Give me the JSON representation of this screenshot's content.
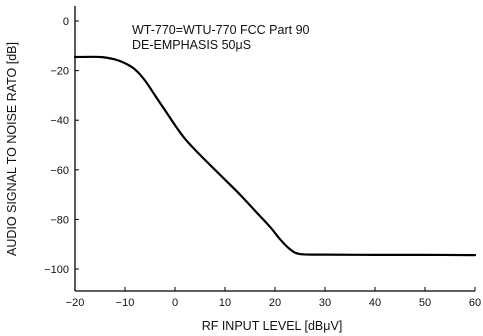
{
  "chart_data": {
    "type": "line",
    "annotations": [
      "WT-770=WTU-770  FCC  Part  90",
      "DE-EMPHASIS  50μS"
    ],
    "xlabel": "RF INPUT LEVEL [dBμV]",
    "ylabel": "AUDIO SIGNAL TO NOISE RATO [dB]",
    "xlim": [
      -20,
      60
    ],
    "ylim": [
      -105,
      5
    ],
    "x_ticks": [
      -20,
      -10,
      0,
      10,
      20,
      30,
      40,
      50,
      60
    ],
    "y_ticks": [
      0,
      -20,
      -40,
      -60,
      -80,
      -100
    ],
    "x_tick_labels": [
      "−20",
      "−10",
      "0",
      "10",
      "20",
      "30",
      "40",
      "50",
      "60"
    ],
    "y_tick_labels": [
      "0",
      "−20",
      "−40",
      "−60",
      "−80",
      "−100"
    ],
    "grid": false,
    "series": [
      {
        "color": "#000000",
        "x": [
          -20,
          -15,
          -12,
          -10,
          -8,
          -6,
          -4,
          -2,
          0,
          2,
          5,
          8,
          10,
          13,
          16,
          19,
          21,
          23,
          25,
          30,
          40,
          50,
          60
        ],
        "y": [
          -14.5,
          -14.5,
          -15.5,
          -17,
          -19.5,
          -24,
          -30,
          -36,
          -42,
          -47.5,
          -54,
          -60,
          -64,
          -70,
          -76.5,
          -83,
          -88,
          -92,
          -94,
          -94.2,
          -94.3,
          -94.3,
          -94.4
        ]
      }
    ]
  }
}
